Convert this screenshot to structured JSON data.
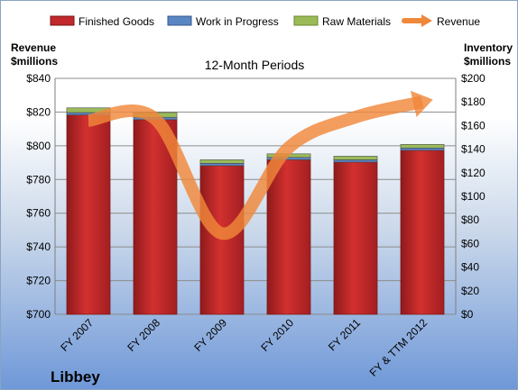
{
  "chart_data": {
    "type": "bar",
    "title": "12-Month Periods",
    "company": "Libbey",
    "categories": [
      "FY 2007",
      "FY 2008",
      "FY 2009",
      "FY 2010",
      "FY 2011",
      "FY & TTM 2012"
    ],
    "left_axis": {
      "title_line1": "Revenue",
      "title_line2": "$millions",
      "ylim": [
        700,
        840
      ],
      "ticks": [
        "$700",
        "$720",
        "$740",
        "$760",
        "$780",
        "$800",
        "$820",
        "$840"
      ]
    },
    "right_axis": {
      "title_line1": "Inventory",
      "title_line2": "$millions",
      "ylim": [
        0,
        200
      ],
      "ticks": [
        "$0",
        "$20",
        "$40",
        "$60",
        "$80",
        "$100",
        "$120",
        "$140",
        "$160",
        "$180",
        "$200"
      ]
    },
    "stacked_series": [
      {
        "name": "Finished Goods",
        "axis": "right",
        "color": "#c0282b",
        "values": [
          169,
          165,
          126,
          131,
          129,
          139
        ]
      },
      {
        "name": "Work in Progress",
        "axis": "right",
        "color": "#5b86c4",
        "values": [
          2,
          2,
          2,
          2,
          2,
          2
        ]
      },
      {
        "name": "Raw Materials",
        "axis": "right",
        "color": "#9bbb59",
        "values": [
          4,
          4,
          3,
          3,
          3,
          3
        ]
      }
    ],
    "line_series": {
      "name": "Revenue",
      "axis": "left",
      "color": "#f0883a",
      "values": [
        815,
        816,
        748,
        799,
        817,
        826
      ]
    },
    "grid": true,
    "legend": "top"
  }
}
